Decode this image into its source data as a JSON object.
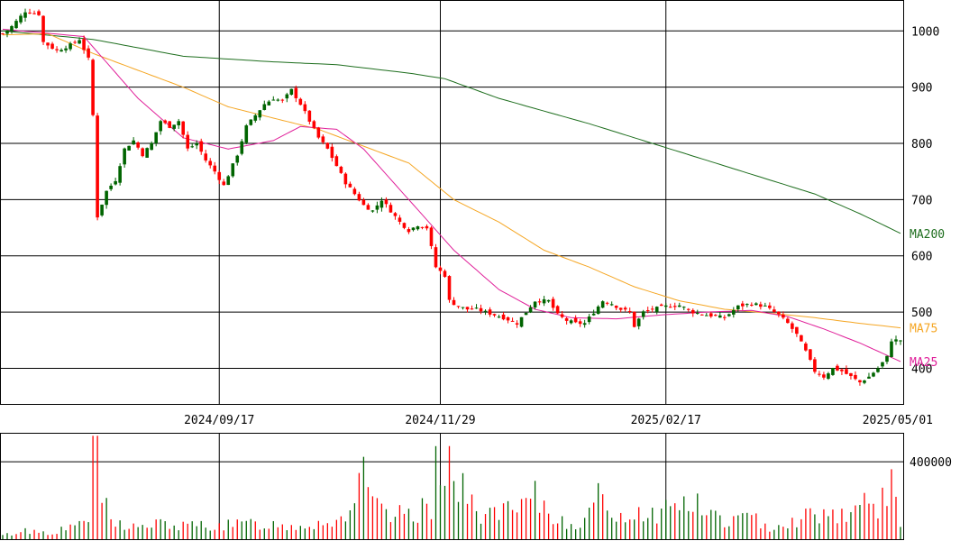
{
  "chart_data": {
    "type": "candlestick",
    "price_axis": {
      "ticks": [
        400,
        500,
        600,
        700,
        800,
        900,
        1000
      ],
      "ylim": [
        335,
        1055
      ]
    },
    "volume_axis": {
      "ticks": [
        400000
      ],
      "ylim": [
        0,
        545000
      ]
    },
    "x_axis": {
      "tick_labels": [
        "2024/09/17",
        "2024/11/29",
        "2025/02/17",
        "2025/05/01"
      ],
      "tick_index": [
        48,
        97,
        147,
        199
      ],
      "n_bars": 200
    },
    "grid": true,
    "colors": {
      "up": "#006400",
      "down": "#ff0000",
      "ma25": "#e0209a",
      "ma75": "#f5a623",
      "ma200": "#1e6e1e"
    },
    "price_keypoints": [
      [
        0,
        995
      ],
      [
        2,
        1008
      ],
      [
        5,
        1035
      ],
      [
        8,
        1030
      ],
      [
        9,
        980
      ],
      [
        12,
        965
      ],
      [
        15,
        975
      ],
      [
        17,
        985
      ],
      [
        19,
        950
      ],
      [
        20,
        850
      ],
      [
        21,
        670
      ],
      [
        23,
        715
      ],
      [
        25,
        735
      ],
      [
        27,
        790
      ],
      [
        29,
        805
      ],
      [
        31,
        780
      ],
      [
        33,
        800
      ],
      [
        35,
        840
      ],
      [
        37,
        830
      ],
      [
        39,
        840
      ],
      [
        41,
        790
      ],
      [
        43,
        800
      ],
      [
        45,
        770
      ],
      [
        47,
        750
      ],
      [
        49,
        725
      ],
      [
        52,
        780
      ],
      [
        54,
        830
      ],
      [
        56,
        850
      ],
      [
        58,
        870
      ],
      [
        60,
        880
      ],
      [
        62,
        875
      ],
      [
        64,
        895
      ],
      [
        66,
        870
      ],
      [
        68,
        840
      ],
      [
        70,
        810
      ],
      [
        72,
        790
      ],
      [
        74,
        760
      ],
      [
        76,
        730
      ],
      [
        78,
        710
      ],
      [
        80,
        690
      ],
      [
        82,
        680
      ],
      [
        84,
        700
      ],
      [
        86,
        680
      ],
      [
        88,
        660
      ],
      [
        90,
        645
      ],
      [
        92,
        655
      ],
      [
        94,
        650
      ],
      [
        96,
        580
      ],
      [
        98,
        565
      ],
      [
        99,
        520
      ],
      [
        101,
        510
      ],
      [
        103,
        505
      ],
      [
        105,
        505
      ],
      [
        107,
        500
      ],
      [
        109,
        495
      ],
      [
        111,
        490
      ],
      [
        114,
        480
      ],
      [
        116,
        500
      ],
      [
        118,
        520
      ],
      [
        121,
        520
      ],
      [
        123,
        495
      ],
      [
        125,
        485
      ],
      [
        127,
        480
      ],
      [
        129,
        480
      ],
      [
        131,
        500
      ],
      [
        133,
        520
      ],
      [
        135,
        515
      ],
      [
        137,
        505
      ],
      [
        139,
        500
      ],
      [
        140,
        475
      ],
      [
        142,
        500
      ],
      [
        144,
        505
      ],
      [
        147,
        510
      ],
      [
        150,
        512
      ],
      [
        153,
        500
      ],
      [
        156,
        495
      ],
      [
        160,
        490
      ],
      [
        163,
        510
      ],
      [
        166,
        515
      ],
      [
        169,
        510
      ],
      [
        172,
        495
      ],
      [
        174,
        480
      ],
      [
        176,
        460
      ],
      [
        178,
        430
      ],
      [
        180,
        395
      ],
      [
        182,
        385
      ],
      [
        184,
        400
      ],
      [
        186,
        395
      ],
      [
        188,
        385
      ],
      [
        190,
        375
      ],
      [
        192,
        385
      ],
      [
        194,
        400
      ],
      [
        196,
        420
      ],
      [
        197,
        450
      ],
      [
        199,
        450
      ]
    ],
    "volume_keypoints": [
      [
        0,
        18000
      ],
      [
        5,
        45000
      ],
      [
        10,
        35000
      ],
      [
        15,
        55000
      ],
      [
        19,
        120000
      ],
      [
        20,
        440000
      ],
      [
        21,
        480000
      ],
      [
        22,
        220000
      ],
      [
        24,
        90000
      ],
      [
        30,
        60000
      ],
      [
        35,
        80000
      ],
      [
        40,
        65000
      ],
      [
        45,
        75000
      ],
      [
        50,
        70000
      ],
      [
        55,
        80000
      ],
      [
        60,
        75000
      ],
      [
        65,
        70000
      ],
      [
        70,
        85000
      ],
      [
        75,
        100000
      ],
      [
        80,
        300000
      ],
      [
        82,
        190000
      ],
      [
        85,
        110000
      ],
      [
        90,
        130000
      ],
      [
        95,
        160000
      ],
      [
        96,
        460000
      ],
      [
        98,
        470000
      ],
      [
        100,
        300000
      ],
      [
        105,
        140000
      ],
      [
        110,
        130000
      ],
      [
        115,
        150000
      ],
      [
        118,
        210000
      ],
      [
        122,
        110000
      ],
      [
        127,
        80000
      ],
      [
        130,
        120000
      ],
      [
        133,
        240000
      ],
      [
        137,
        100000
      ],
      [
        140,
        150000
      ],
      [
        145,
        130000
      ],
      [
        150,
        200000
      ],
      [
        155,
        160000
      ],
      [
        160,
        90000
      ],
      [
        165,
        110000
      ],
      [
        170,
        70000
      ],
      [
        175,
        90000
      ],
      [
        180,
        140000
      ],
      [
        185,
        130000
      ],
      [
        190,
        165000
      ],
      [
        194,
        185000
      ],
      [
        197,
        250000
      ],
      [
        199,
        110000
      ]
    ],
    "ma25_keypoints": [
      [
        0,
        1003
      ],
      [
        18,
        990
      ],
      [
        30,
        880
      ],
      [
        40,
        810
      ],
      [
        50,
        790
      ],
      [
        60,
        805
      ],
      [
        66,
        830
      ],
      [
        74,
        825
      ],
      [
        80,
        790
      ],
      [
        90,
        700
      ],
      [
        100,
        610
      ],
      [
        110,
        540
      ],
      [
        118,
        505
      ],
      [
        126,
        490
      ],
      [
        136,
        488
      ],
      [
        146,
        495
      ],
      [
        156,
        500
      ],
      [
        166,
        503
      ],
      [
        174,
        492
      ],
      [
        182,
        470
      ],
      [
        190,
        445
      ],
      [
        199,
        412
      ]
    ],
    "ma75_keypoints": [
      [
        0,
        993
      ],
      [
        10,
        995
      ],
      [
        20,
        960
      ],
      [
        30,
        930
      ],
      [
        40,
        900
      ],
      [
        50,
        865
      ],
      [
        60,
        845
      ],
      [
        70,
        825
      ],
      [
        80,
        795
      ],
      [
        90,
        765
      ],
      [
        100,
        700
      ],
      [
        110,
        660
      ],
      [
        120,
        610
      ],
      [
        130,
        580
      ],
      [
        140,
        545
      ],
      [
        150,
        520
      ],
      [
        160,
        505
      ],
      [
        170,
        498
      ],
      [
        180,
        490
      ],
      [
        190,
        480
      ],
      [
        199,
        472
      ]
    ],
    "ma200_keypoints": [
      [
        0,
        1000
      ],
      [
        20,
        985
      ],
      [
        40,
        955
      ],
      [
        60,
        945
      ],
      [
        74,
        940
      ],
      [
        90,
        925
      ],
      [
        98,
        915
      ],
      [
        110,
        880
      ],
      [
        130,
        835
      ],
      [
        150,
        785
      ],
      [
        170,
        735
      ],
      [
        180,
        710
      ],
      [
        190,
        675
      ],
      [
        199,
        640
      ]
    ],
    "ma_labels": [
      "MA200",
      "MA75",
      "MA25"
    ]
  }
}
